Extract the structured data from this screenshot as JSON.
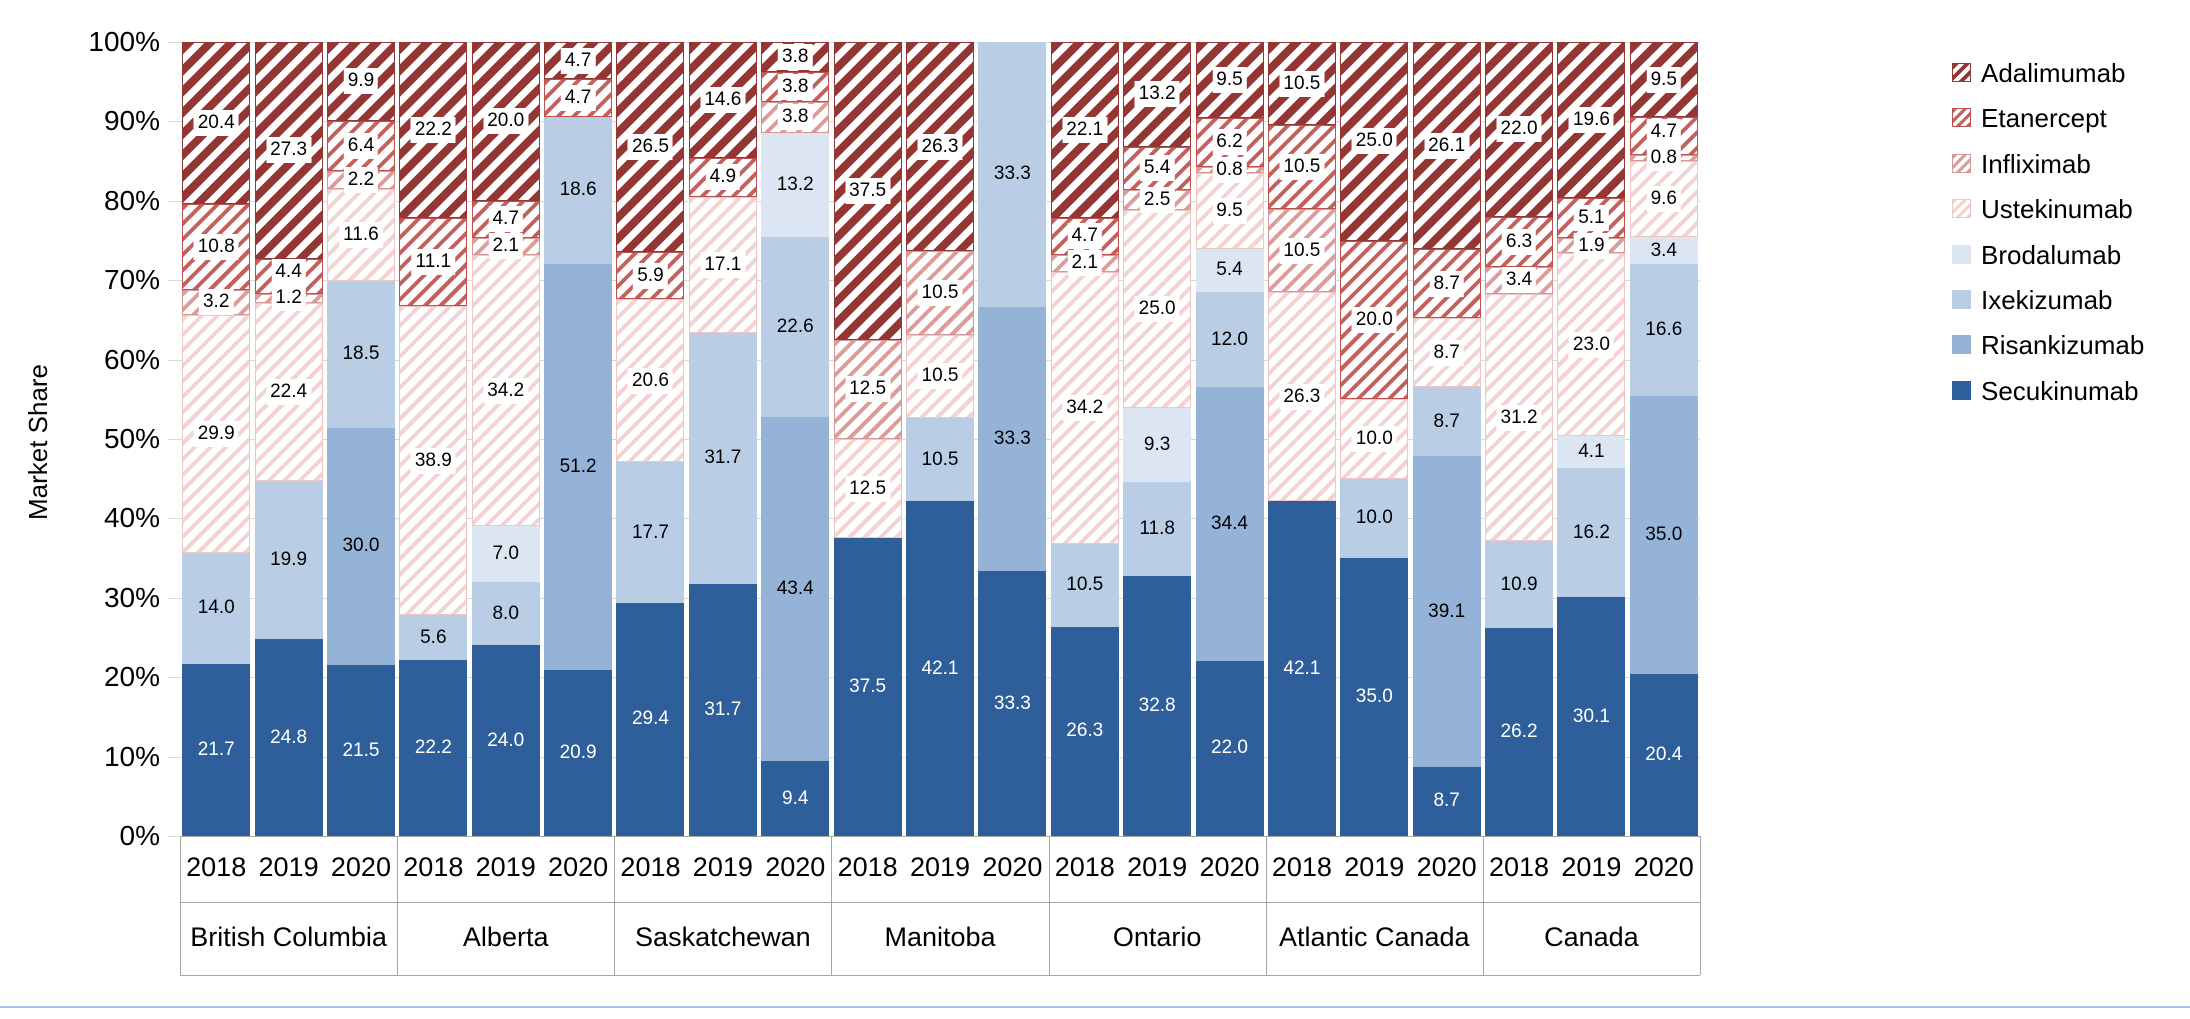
{
  "chart_data": {
    "type": "stacked-bar",
    "title": "",
    "ylabel": "Market Share",
    "unit": "percent",
    "ylim": [
      0,
      100
    ],
    "grid": true,
    "legend_position": "right",
    "y_ticks": [
      "0%",
      "10%",
      "20%",
      "30%",
      "40%",
      "50%",
      "60%",
      "70%",
      "80%",
      "90%",
      "100%"
    ],
    "groups": [
      "British Columbia",
      "Alberta",
      "Saskatchewan",
      "Manitoba",
      "Ontario",
      "Atlantic Canada",
      "Canada"
    ],
    "years": [
      "2018",
      "2019",
      "2020"
    ],
    "bar_order_note": "values arrays hold 21 bars: group-major, year-minor (BC2018..Canada2020); null = segment absent",
    "series_bottom_to_top": [
      {
        "name": "Secukinumab",
        "pattern": "solid",
        "color": "#2f5f9b",
        "label_color": "#ffffff",
        "values": [
          "21.7",
          "24.8",
          "21.5",
          "22.2",
          "24.0",
          "20.9",
          "29.4",
          "31.7",
          "9.4",
          "37.5",
          "42.1",
          "33.3",
          "26.3",
          "32.8",
          "22.0",
          "42.1",
          "35.0",
          "8.7",
          "26.2",
          "30.1",
          "20.4"
        ]
      },
      {
        "name": "Risankizumab",
        "pattern": "solid",
        "color": "#95b3d7",
        "label_color": "#000000",
        "values": [
          null,
          null,
          "30.0",
          null,
          null,
          "51.2",
          null,
          null,
          "43.4",
          null,
          null,
          "33.3",
          null,
          null,
          "34.4",
          null,
          null,
          "39.1",
          null,
          null,
          "35.0"
        ]
      },
      {
        "name": "Ixekizumab",
        "pattern": "solid",
        "color": "#b9cde5",
        "label_color": "#000000",
        "values": [
          "14.0",
          "19.9",
          "18.5",
          "5.6",
          "8.0",
          "18.6",
          "17.7",
          "31.7",
          "22.6",
          null,
          "10.5",
          "33.3",
          "10.5",
          "11.8",
          "12.0",
          null,
          "10.0",
          "8.7",
          "10.9",
          "16.2",
          "16.6"
        ]
      },
      {
        "name": "Brodalumab",
        "pattern": "solid",
        "color": "#dce6f2",
        "label_color": "#000000",
        "values": [
          null,
          null,
          null,
          null,
          "7.0",
          null,
          null,
          null,
          "13.2",
          null,
          null,
          null,
          null,
          "9.3",
          "5.4",
          null,
          null,
          null,
          null,
          "4.1",
          "3.4"
        ]
      },
      {
        "name": "Ustekinumab",
        "pattern": "hatch",
        "color": "#f2dcdb",
        "stripe_color": "#f2d3d1",
        "label_color": "#000000",
        "values": [
          "29.9",
          "22.4",
          "11.6",
          "38.9",
          "34.2",
          null,
          "20.6",
          "17.1",
          null,
          "12.5",
          "10.5",
          null,
          "34.2",
          "25.0",
          "9.5",
          "26.3",
          "10.0",
          "8.7",
          "31.2",
          "23.0",
          "9.6"
        ]
      },
      {
        "name": "Infliximab",
        "pattern": "hatch",
        "color": "#d99694",
        "stripe_color": "#db9c9a",
        "label_color": "#000000",
        "values": [
          "3.2",
          "1.2",
          "2.2",
          null,
          "2.1",
          null,
          null,
          null,
          "3.8",
          "12.5",
          "10.5",
          null,
          "2.1",
          "2.5",
          "0.8",
          "10.5",
          null,
          null,
          "3.4",
          "1.9",
          "0.8"
        ]
      },
      {
        "name": "Etanercept",
        "pattern": "hatch",
        "color": "#c0504d",
        "stripe_color": "#c4615e",
        "label_color": "#000000",
        "values": [
          "10.8",
          "4.4",
          "6.4",
          "11.1",
          "4.7",
          "4.7",
          "5.9",
          "4.9",
          "3.8",
          null,
          null,
          null,
          "4.7",
          "5.4",
          "6.2",
          "10.5",
          "20.0",
          "8.7",
          "6.3",
          "5.1",
          "4.7"
        ]
      },
      {
        "name": "Adalimumab",
        "pattern": "hatch",
        "color": "#943634",
        "stripe_color": "#943634",
        "label_color": "#000000",
        "values": [
          "20.4",
          "27.3",
          "9.9",
          "22.2",
          "20.0",
          "4.7",
          "26.5",
          "14.6",
          "3.8",
          "37.5",
          "26.3",
          null,
          "22.1",
          "13.2",
          "9.5",
          "10.5",
          "25.0",
          "26.1",
          "22.0",
          "19.6",
          "9.5"
        ]
      }
    ],
    "legend_top_to_bottom": [
      "Adalimumab",
      "Etanercept",
      "Infliximab",
      "Ustekinumab",
      "Brodalumab",
      "Ixekizumab",
      "Risankizumab",
      "Secukinumab"
    ],
    "accent_rule_color": "#9dc3e6"
  }
}
